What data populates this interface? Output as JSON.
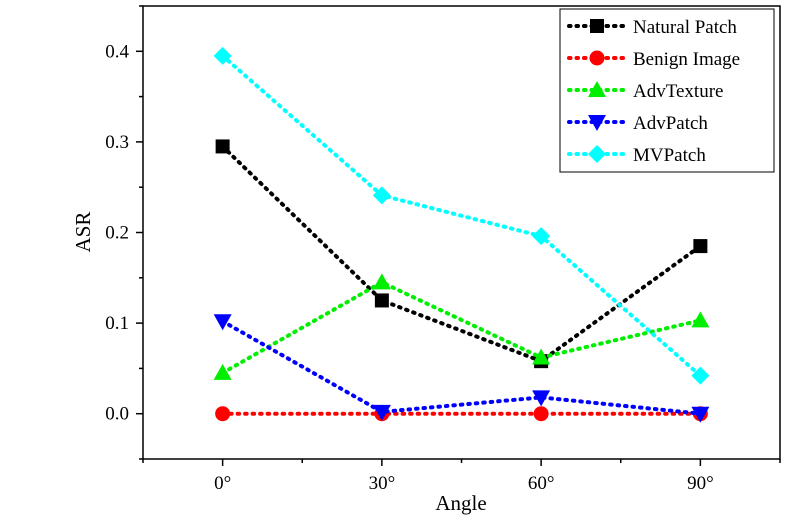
{
  "chart_data": {
    "type": "line",
    "xlabel": "Angle",
    "ylabel": "ASR",
    "categories": [
      "0°",
      "30°",
      "60°",
      "90°"
    ],
    "x": [
      0,
      30,
      60,
      90
    ],
    "xlim": [
      -15,
      105
    ],
    "ylim": [
      -0.05,
      0.45
    ],
    "yticks": [
      0.0,
      0.1,
      0.2,
      0.3,
      0.4
    ],
    "ytick_labels": [
      "0.0",
      "0.1",
      "0.2",
      "0.3",
      "0.4"
    ],
    "grid": false,
    "legend_position": "top-right",
    "line_style": "dotted",
    "series": [
      {
        "name": "Natural Patch",
        "color": "#000000",
        "marker": "square",
        "values": [
          0.295,
          0.125,
          0.058,
          0.185
        ]
      },
      {
        "name": "Benign Image",
        "color": "#ff0000",
        "marker": "circle",
        "values": [
          0.0,
          0.0,
          0.0,
          0.0
        ]
      },
      {
        "name": "AdvTexture",
        "color": "#00ee00",
        "marker": "triangle-up",
        "values": [
          0.045,
          0.145,
          0.062,
          0.103
        ]
      },
      {
        "name": "AdvPatch",
        "color": "#0000ff",
        "marker": "triangle-down",
        "values": [
          0.102,
          0.002,
          0.018,
          0.0
        ]
      },
      {
        "name": "MVPatch",
        "color": "#00ffff",
        "marker": "diamond",
        "values": [
          0.395,
          0.241,
          0.196,
          0.042
        ]
      }
    ]
  }
}
